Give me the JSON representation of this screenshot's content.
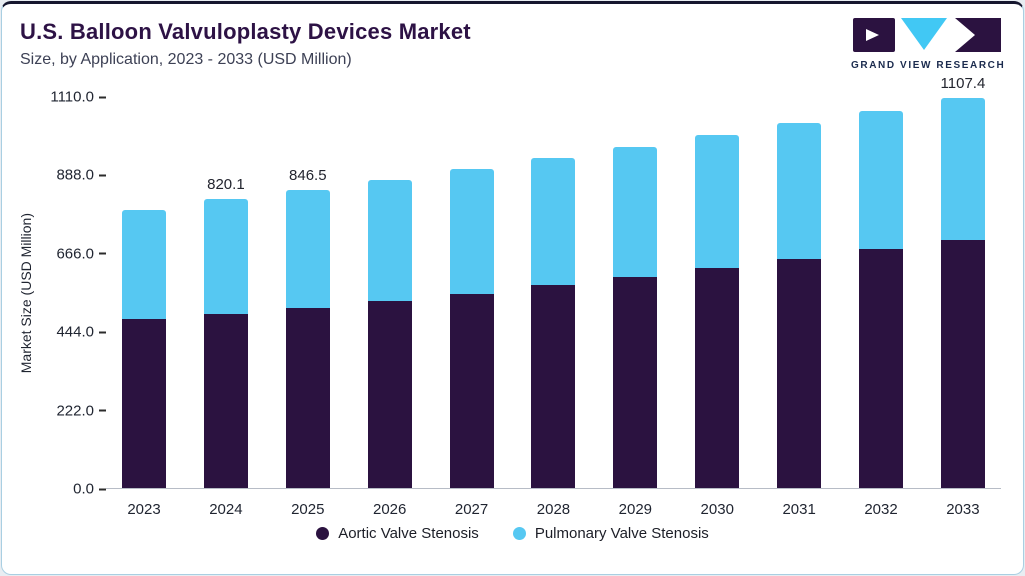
{
  "header": {
    "title": "U.S. Balloon Valvuloplasty Devices Market",
    "subtitle": "Size, by Application, 2023 - 2033 (USD Million)"
  },
  "logo": {
    "text": "GRAND VIEW RESEARCH"
  },
  "chart_data": {
    "type": "bar",
    "stacked": true,
    "title": "U.S. Balloon Valvuloplasty Devices Market Size, by Application, 2023 - 2033 (USD Million)",
    "xlabel": "",
    "ylabel": "Market Size (USD Million)",
    "ylim": [
      0,
      1110
    ],
    "ytick_labels": [
      "0.0",
      "222.0",
      "444.0",
      "666.0",
      "888.0",
      "1110.0"
    ],
    "grid": false,
    "legend_position": "bottom",
    "categories": [
      "2023",
      "2024",
      "2025",
      "2026",
      "2027",
      "2028",
      "2029",
      "2030",
      "2031",
      "2032",
      "2033"
    ],
    "series": [
      {
        "name": "Aortic Valve Stenosis",
        "color": "#2b1240",
        "values": [
          480.0,
          495.0,
          512.0,
          530.0,
          552.0,
          575.0,
          598.0,
          624.0,
          650.0,
          678.0,
          705.0
        ]
      },
      {
        "name": "Pulmonary Valve Stenosis",
        "color": "#56c8f2",
        "values": [
          310.0,
          325.1,
          334.5,
          345.0,
          353.0,
          361.0,
          370.0,
          377.0,
          385.0,
          392.0,
          402.4
        ]
      }
    ],
    "totals": [
      790.0,
      820.1,
      846.5,
      875.0,
      905.0,
      936.0,
      968.0,
      1001.0,
      1035.0,
      1070.0,
      1107.4
    ],
    "annotations": [
      {
        "category": "2024",
        "text": "820.1"
      },
      {
        "category": "2025",
        "text": "846.5"
      },
      {
        "category": "2033",
        "text": "1107.4"
      }
    ]
  },
  "colors": {
    "accent_dark": "#2b1240",
    "accent_blue": "#56c8f2",
    "card_border": "#a9cfe2",
    "top_bar": "#15162e",
    "background": "#e8edf2"
  }
}
